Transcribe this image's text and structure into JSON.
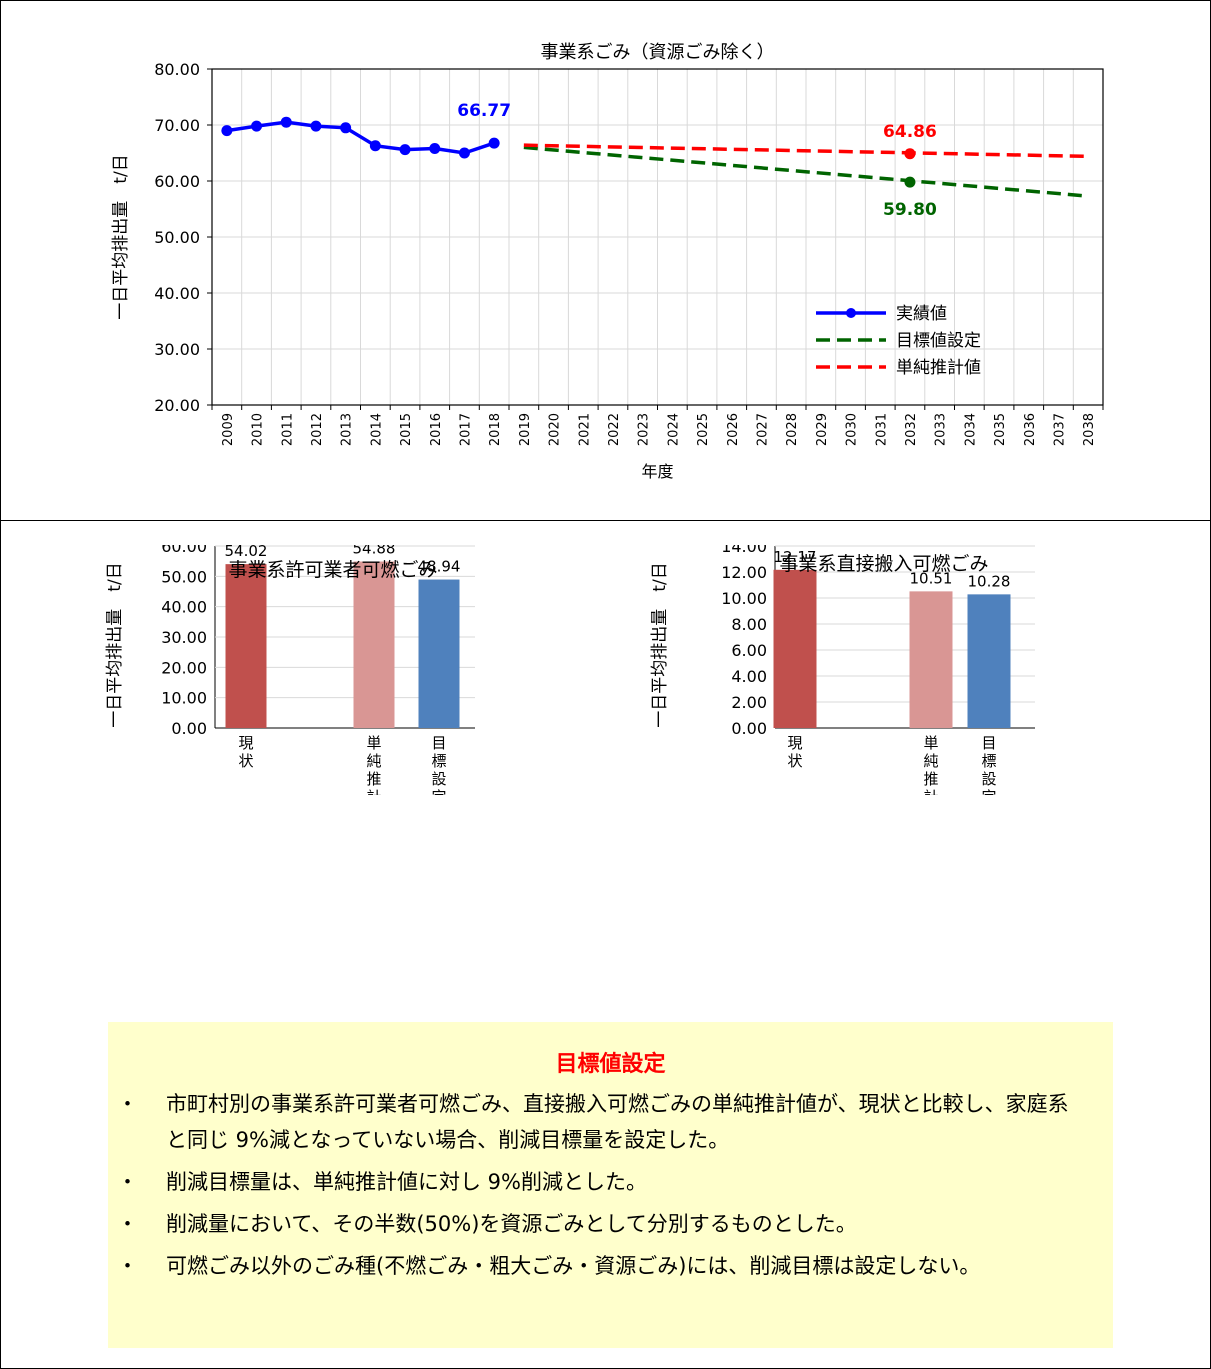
{
  "chart_data": [
    {
      "type": "line",
      "title": "事業系ごみ（資源ごみ除く）",
      "xlabel": "年度",
      "ylabel": "一日平均排出量　t/日",
      "ylim": [
        20,
        80
      ],
      "yticks": [
        "20.00",
        "30.00",
        "40.00",
        "50.00",
        "60.00",
        "70.00",
        "80.00"
      ],
      "categories": [
        "2009",
        "2010",
        "2011",
        "2012",
        "2013",
        "2014",
        "2015",
        "2016",
        "2017",
        "2018",
        "2019",
        "2020",
        "2021",
        "2022",
        "2023",
        "2024",
        "2025",
        "2026",
        "2027",
        "2028",
        "2029",
        "2030",
        "2031",
        "2032",
        "2033",
        "2034",
        "2035",
        "2036",
        "2037",
        "2038"
      ],
      "grid": true,
      "legend_position": "bottom-right",
      "series": [
        {
          "name": "実績値",
          "color": "#0000ff",
          "style": "solid-markers",
          "x": [
            "2009",
            "2010",
            "2011",
            "2012",
            "2013",
            "2014",
            "2015",
            "2016",
            "2017",
            "2018"
          ],
          "values": [
            69.0,
            69.8,
            70.5,
            69.8,
            69.5,
            66.3,
            65.6,
            65.8,
            65.0,
            66.77
          ]
        },
        {
          "name": "目標値設定",
          "color": "#006400",
          "style": "dashed",
          "x": [
            "2019",
            "2038"
          ],
          "values": [
            66.0,
            57.3
          ]
        },
        {
          "name": "単純推計値",
          "color": "#ff0000",
          "style": "dashed",
          "x": [
            "2019",
            "2038"
          ],
          "values": [
            66.4,
            64.4
          ]
        }
      ],
      "annotations": [
        {
          "text": "66.77",
          "x": "2018",
          "value": 66.77,
          "color": "#0000ff"
        },
        {
          "text": "64.86",
          "x": "2032",
          "value": 64.86,
          "color": "#ff0000"
        },
        {
          "text": "59.80",
          "x": "2032",
          "value": 59.8,
          "color": "#006400"
        }
      ]
    },
    {
      "type": "bar",
      "title": "事業系許可業者可燃ごみ",
      "ylabel": "一日平均排出量　t/日",
      "ylim": [
        0,
        60
      ],
      "yticks": [
        "0.00",
        "10.00",
        "20.00",
        "30.00",
        "40.00",
        "50.00",
        "60.00"
      ],
      "categories": [
        "現状",
        "",
        "単純推計",
        "目標設定"
      ],
      "values": [
        54.02,
        null,
        54.88,
        48.94
      ],
      "labels": [
        "54.02",
        "",
        "54.88",
        "48.94"
      ],
      "colors": [
        "#c0504d",
        "",
        "#d99694",
        "#4f81bd"
      ]
    },
    {
      "type": "bar",
      "title": "事業系直接搬入可燃ごみ",
      "ylabel": "一日平均排出量　t/日",
      "ylim": [
        0,
        14
      ],
      "yticks": [
        "0.00",
        "2.00",
        "4.00",
        "6.00",
        "8.00",
        "10.00",
        "12.00",
        "14.00"
      ],
      "categories": [
        "現状",
        "",
        "単純推計",
        "目標設定"
      ],
      "values": [
        12.17,
        null,
        10.51,
        10.28
      ],
      "labels": [
        "12.17",
        "",
        "10.51",
        "10.28"
      ],
      "colors": [
        "#c0504d",
        "",
        "#d99694",
        "#4f81bd"
      ]
    }
  ],
  "note": {
    "title": "目標値設定",
    "bullet": "・",
    "items": [
      "市町村別の事業系許可業者可燃ごみ、直接搬入可燃ごみの単純推計値が、現状と比較し、家庭系と同じ 9%減となっていない場合、削減目標量を設定した。",
      "削減目標量は、単純推計値に対し 9%削減とした。",
      "削減量において、その半数(50%)を資源ごみとして分別するものとした。",
      "可燃ごみ以外のごみ種(不燃ごみ・粗大ごみ・資源ごみ)には、削減目標は設定しない。"
    ]
  }
}
